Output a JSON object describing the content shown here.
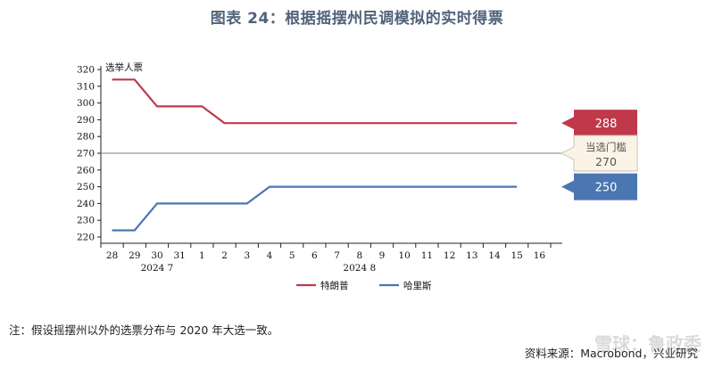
{
  "title": "图表 24：根据摇摆州民调模拟的实时得票",
  "note": "注：假设摇摆州以外的选票分布与 2020 年大选一致。",
  "source": "资料来源：Macrobond，兴业研究",
  "watermark": "雪球：鲁政委",
  "colors": {
    "trump": "#c0394b",
    "harris": "#4a76b2",
    "threshold": "#777777",
    "threshold_box_bg": "#fbf3e6"
  },
  "chart_data": {
    "type": "line",
    "title": "",
    "ylabel": "选举人票",
    "ylim": [
      220,
      320
    ],
    "yticks": [
      220,
      230,
      240,
      250,
      260,
      270,
      280,
      290,
      300,
      310,
      320
    ],
    "x": [
      "28",
      "29",
      "30",
      "31",
      "1",
      "2",
      "3",
      "4",
      "5",
      "6",
      "7",
      "8",
      "9",
      "10",
      "11",
      "12",
      "13",
      "14",
      "15",
      "16"
    ],
    "month_labels": [
      {
        "text": "2024 7",
        "under": "30"
      },
      {
        "text": "2024 8",
        "under": "8"
      }
    ],
    "series": [
      {
        "name": "特朗普",
        "color": "#c0394b",
        "points": [
          [
            0,
            314
          ],
          [
            1,
            314
          ],
          [
            2,
            298
          ],
          [
            3.1,
            298
          ],
          [
            4,
            298
          ],
          [
            5,
            288
          ],
          [
            6,
            288
          ],
          [
            7,
            288
          ],
          [
            8,
            288
          ],
          [
            9,
            288
          ],
          [
            10,
            288
          ],
          [
            11,
            288
          ],
          [
            12,
            288
          ],
          [
            13,
            288
          ],
          [
            14,
            288
          ],
          [
            15,
            288
          ],
          [
            16,
            288
          ],
          [
            17,
            288
          ],
          [
            18,
            288
          ]
        ]
      },
      {
        "name": "哈里斯",
        "color": "#4a76b2",
        "points": [
          [
            0,
            224
          ],
          [
            1,
            224
          ],
          [
            2,
            240
          ],
          [
            3,
            240
          ],
          [
            4,
            240
          ],
          [
            5,
            240
          ],
          [
            6,
            240
          ],
          [
            7,
            250
          ],
          [
            8,
            250
          ],
          [
            9,
            250
          ],
          [
            10,
            250
          ],
          [
            11,
            250
          ],
          [
            12,
            250
          ],
          [
            13,
            250
          ],
          [
            14,
            250
          ],
          [
            15,
            250
          ],
          [
            16,
            250
          ],
          [
            17,
            250
          ],
          [
            18,
            250
          ]
        ]
      }
    ],
    "threshold": {
      "value": 270,
      "label": "当选门槛",
      "value_text": "270"
    },
    "callouts": [
      {
        "series": "特朗普",
        "value_text": "288"
      },
      {
        "series": "哈里斯",
        "value_text": "250"
      }
    ],
    "legend": [
      "特朗普",
      "哈里斯"
    ],
    "legend_position": "bottom"
  }
}
